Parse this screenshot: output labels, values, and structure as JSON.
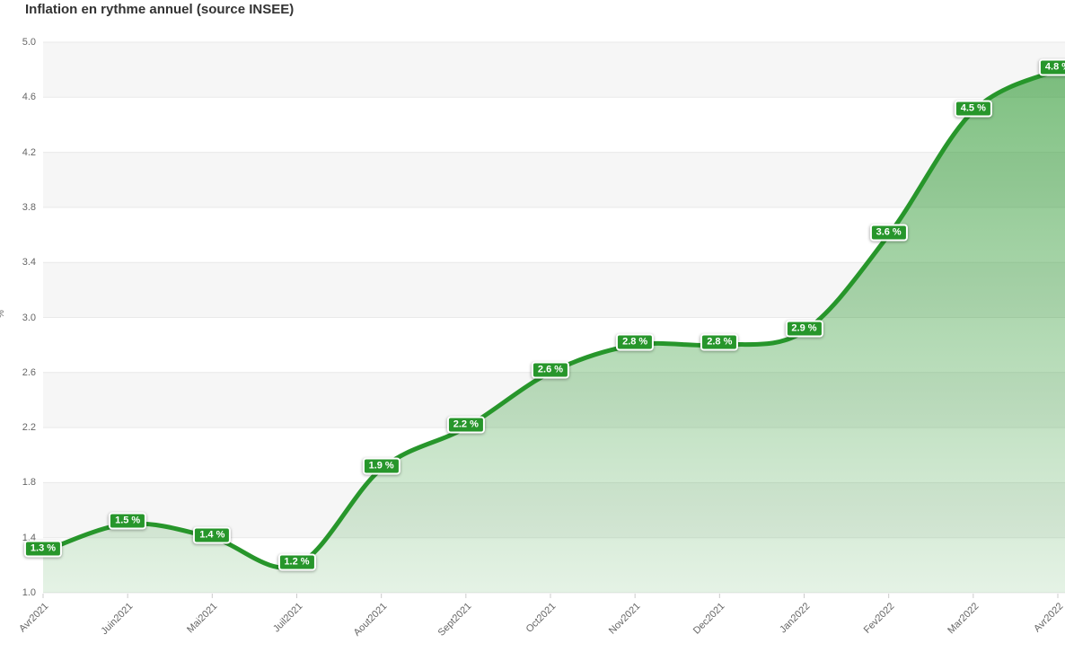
{
  "title": "Inflation en rythme annuel (source INSEE)",
  "chart_data": {
    "type": "area",
    "title": "Inflation en rythme annuel (source INSEE)",
    "x": [
      "Avr2021",
      "Juin2021",
      "Mai2021",
      "Juil2021",
      "Aout2021",
      "Sept2021",
      "Oct2021",
      "Nov2021",
      "Dec2021",
      "Jan2022",
      "Fev2022",
      "Mar2022",
      "Avr2022"
    ],
    "values": [
      1.3,
      1.5,
      1.4,
      1.2,
      1.9,
      2.2,
      2.6,
      2.8,
      2.8,
      2.9,
      3.6,
      4.5,
      4.8
    ],
    "point_labels": [
      "1.3 %",
      "1.5 %",
      "1.4 %",
      "1.2 %",
      "1.9 %",
      "2.2 %",
      "2.6 %",
      "2.8 %",
      "2.8 %",
      "2.9 %",
      "3.6 %",
      "4.5 %",
      "4.8 %"
    ],
    "xlabel": "",
    "ylabel": "%",
    "ylim": [
      1.0,
      5.0
    ],
    "y_ticks": [
      "5.0",
      "4.6",
      "4.2",
      "3.8",
      "3.4",
      "3.0",
      "2.6",
      "2.2",
      "1.8",
      "1.4",
      "1.0"
    ],
    "grid": "alternating horizontal bands, gridline at each tick",
    "legend_position": "none",
    "colors": {
      "line": "#27962b",
      "label_bg": "#27962b",
      "label_text": "#ffffff",
      "area_top": "rgba(40,150,44,0.60)",
      "area_bottom": "rgba(40,150,44,0.12)",
      "band": "#f6f6f6",
      "gridline": "#e9e9e9",
      "tick_mark": "#cccccc",
      "axis_text": "#666666",
      "title_text": "#333333"
    }
  }
}
